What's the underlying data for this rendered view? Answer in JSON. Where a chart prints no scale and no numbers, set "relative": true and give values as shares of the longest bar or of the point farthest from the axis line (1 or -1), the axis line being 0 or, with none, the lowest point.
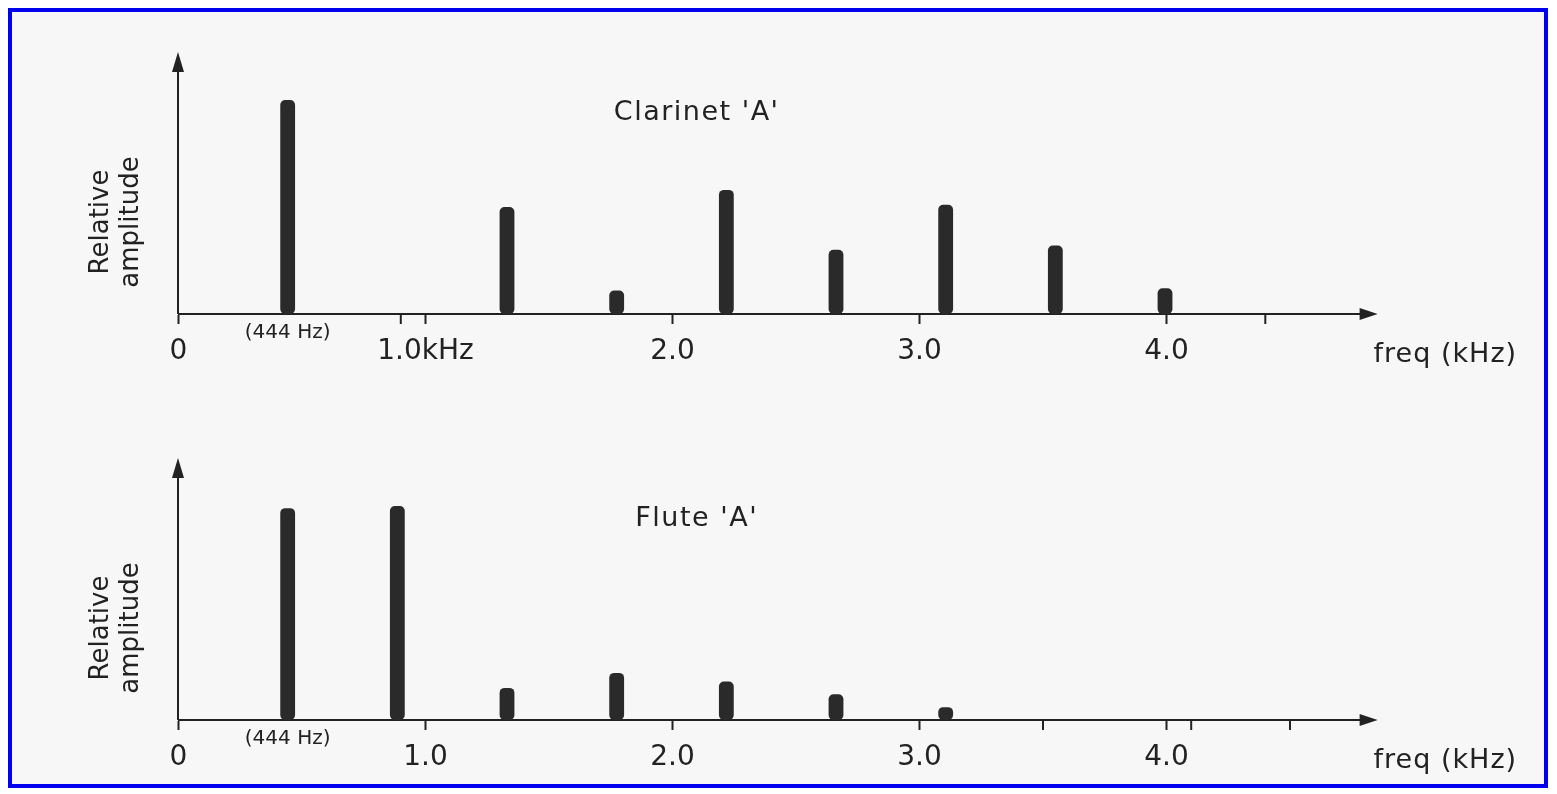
{
  "chart_data": [
    {
      "type": "bar",
      "title": "Clarinet 'A'",
      "xlabel": "freq (kHz)",
      "ylabel": "Relative amplitude",
      "relative": true,
      "x": [
        0.444,
        1.332,
        1.776,
        2.22,
        2.664,
        3.108,
        3.552,
        3.996
      ],
      "values": [
        1,
        0.5,
        0.11,
        0.58,
        0.3,
        0.51,
        0.32,
        0.12
      ],
      "color": "#2a2a2a",
      "xlim": [
        0,
        4.8
      ],
      "xticks": [
        {
          "value": 0,
          "label": "0"
        },
        {
          "value": 0.9,
          "label": null
        },
        {
          "value": 1,
          "label": "1.0kHz"
        },
        {
          "value": 2,
          "label": "2.0"
        },
        {
          "value": 3,
          "label": "3.0"
        },
        {
          "value": 4,
          "label": "4.0"
        },
        {
          "value": 4.4,
          "label": null
        }
      ],
      "annotations": [
        {
          "text": "(444 Hz)",
          "x": 0.444,
          "y": 0
        }
      ]
    },
    {
      "type": "bar",
      "title": "Flute 'A'",
      "xlabel": "freq (kHz)",
      "ylabel": "Relative amplitude",
      "relative": true,
      "x": [
        0.444,
        0.888,
        1.332,
        1.776,
        2.22,
        2.664,
        3.108
      ],
      "values": [
        0.99,
        1,
        0.15,
        0.22,
        0.18,
        0.12,
        0.06
      ],
      "color": "#2a2a2a",
      "xlim": [
        0,
        4.8
      ],
      "xticks": [
        {
          "value": 0,
          "label": "0"
        },
        {
          "value": 1,
          "label": "1.0"
        },
        {
          "value": 2,
          "label": "2.0"
        },
        {
          "value": 3,
          "label": "3.0"
        },
        {
          "value": 3.5,
          "label": null
        },
        {
          "value": 4,
          "label": "4.0"
        },
        {
          "value": 4.1,
          "label": null
        },
        {
          "value": 4.5,
          "label": null
        }
      ],
      "annotations": [
        {
          "text": "(444 Hz)",
          "x": 0.444,
          "y": 0
        }
      ]
    }
  ]
}
